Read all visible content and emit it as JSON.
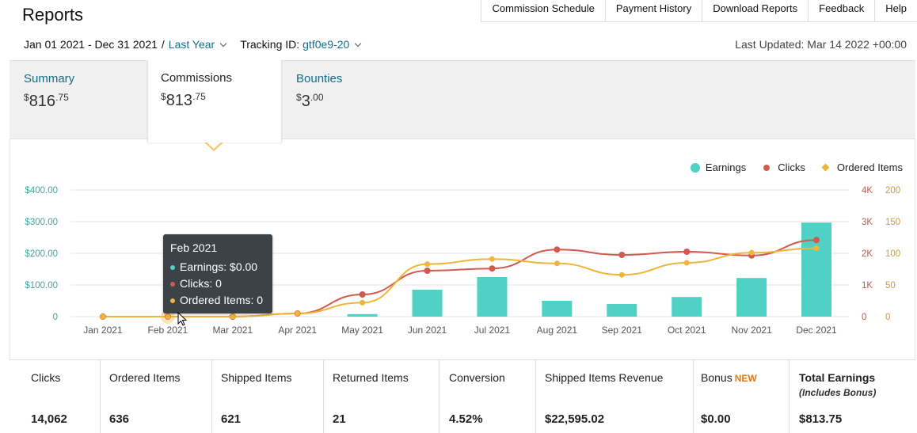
{
  "page": {
    "title": "Reports"
  },
  "top_nav": [
    {
      "label": "Commission Schedule"
    },
    {
      "label": "Payment History"
    },
    {
      "label": "Download Reports"
    },
    {
      "label": "Feedback"
    },
    {
      "label": "Help"
    }
  ],
  "filters": {
    "date_range": "Jan 01 2021 - Dec 31 2021",
    "separator": "/",
    "period_label": "Last Year",
    "tracking_label": "Tracking ID:",
    "tracking_id": "gtf0e9-20",
    "last_updated": "Last Updated: Mar 14 2022 +00:00"
  },
  "tabs": [
    {
      "label": "Summary",
      "currency": "$",
      "whole": "816",
      "cents": ".75"
    },
    {
      "label": "Commissions",
      "currency": "$",
      "whole": "813",
      "cents": ".75"
    },
    {
      "label": "Bounties",
      "currency": "$",
      "whole": "3",
      "cents": ".00"
    }
  ],
  "legend": [
    {
      "label": "Earnings",
      "color": "#4fd1c5",
      "icon": "circle"
    },
    {
      "label": "Clicks",
      "color": "#d05a4e",
      "icon": "line-circle"
    },
    {
      "label": "Ordered Items",
      "color": "#f0b43a",
      "icon": "line-diamond"
    }
  ],
  "tooltip": {
    "title": "Feb 2021",
    "rows": [
      {
        "text": "Earnings: $0.00",
        "color": "#4fd1c5"
      },
      {
        "text": "Clicks: 0",
        "color": "#d05a4e"
      },
      {
        "text": "Ordered Items: 0",
        "color": "#f0b43a"
      }
    ]
  },
  "chart_data": {
    "type": "bar",
    "categories": [
      "Jan 2021",
      "Feb 2021",
      "Mar 2021",
      "Apr 2021",
      "May 2021",
      "Jun 2021",
      "Jul 2021",
      "Aug 2021",
      "Sep 2021",
      "Oct 2021",
      "Nov 2021",
      "Dec 2021"
    ],
    "series": [
      {
        "name": "Earnings",
        "kind": "bar",
        "axis": "left",
        "color": "#4fd1c5",
        "values": [
          0,
          0,
          0,
          0,
          8,
          85,
          125,
          50,
          40,
          62,
          122,
          297
        ]
      },
      {
        "name": "Clicks",
        "kind": "line",
        "axis": "right1",
        "color": "#d05a4e",
        "values": [
          0,
          0,
          0,
          100,
          700,
          1450,
          1520,
          2120,
          1950,
          2050,
          1930,
          2420
        ]
      },
      {
        "name": "Ordered Items",
        "kind": "line",
        "axis": "right2",
        "color": "#f0b43a",
        "values": [
          0,
          0,
          0,
          5,
          22,
          83,
          91,
          84,
          66,
          85,
          101,
          108
        ]
      }
    ],
    "y_left": {
      "ticks": [
        "0",
        "$100.00",
        "$200.00",
        "$300.00",
        "$400.00"
      ],
      "range": [
        0,
        400
      ],
      "color": "#3aa89d"
    },
    "y_right1": {
      "ticks": [
        "0",
        "1K",
        "2K",
        "3K",
        "4K"
      ],
      "range": [
        0,
        4000
      ],
      "color": "#c0594e"
    },
    "y_right2": {
      "ticks": [
        "0",
        "50",
        "100",
        "150",
        "200"
      ],
      "range": [
        0,
        200
      ],
      "color": "#d49a2a"
    },
    "grid": true,
    "legend_position": "top-right",
    "highlight_index": 1
  },
  "metrics": [
    {
      "label": "Clicks",
      "value": "14,062"
    },
    {
      "label": "Ordered Items",
      "value": "636"
    },
    {
      "label": "Shipped Items",
      "value": "621"
    },
    {
      "label": "Returned Items",
      "value": "21"
    },
    {
      "label": "Conversion",
      "value": "4.52%"
    },
    {
      "label": "Shipped Items Revenue",
      "value": "$22,595.02"
    },
    {
      "label": "Bonus",
      "badge": "NEW",
      "value": "$0.00"
    },
    {
      "label": "Total Earnings",
      "sub": "(Includes Bonus)",
      "value": "$813.75"
    }
  ]
}
